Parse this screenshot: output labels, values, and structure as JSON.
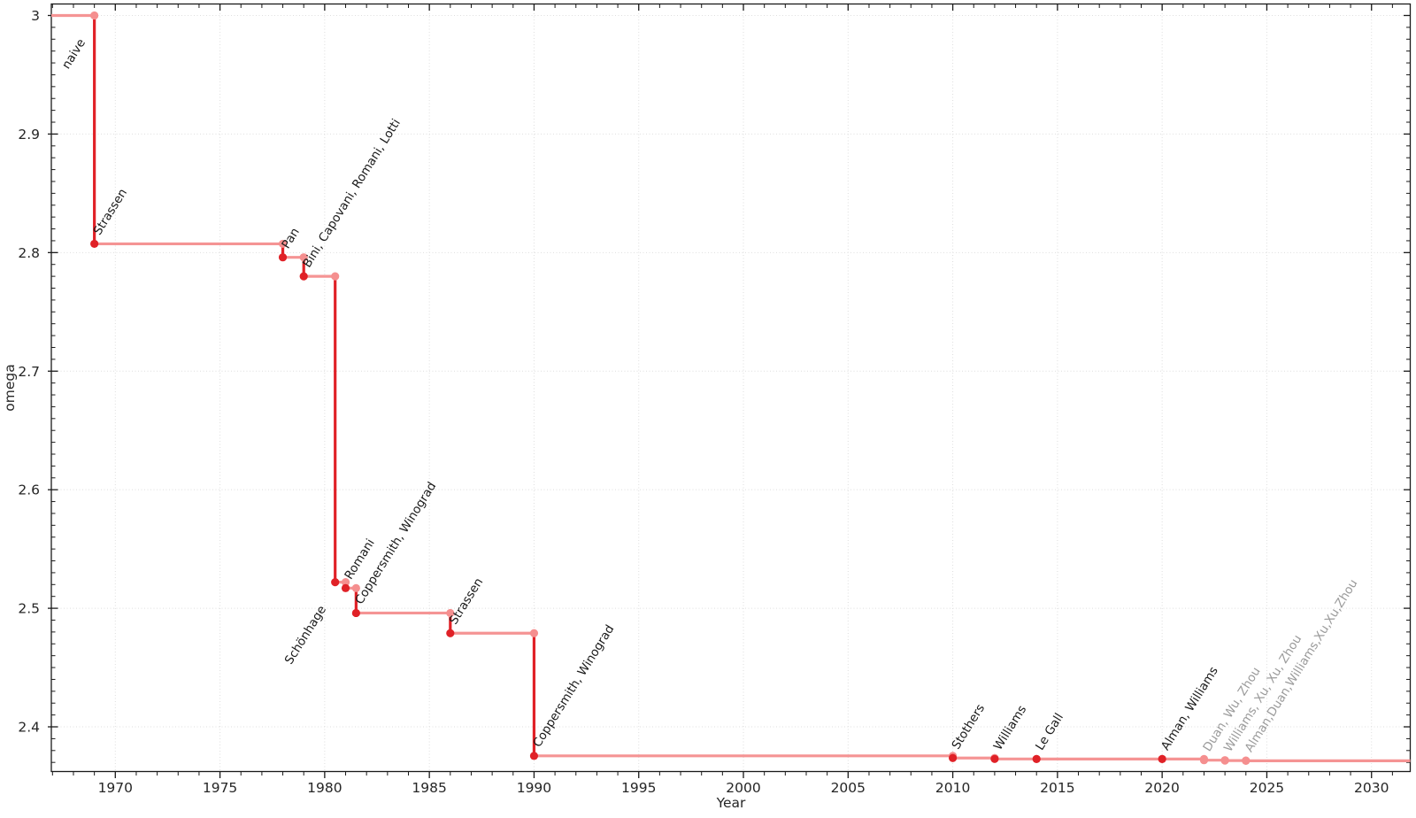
{
  "figure": {
    "background": "#ffffff"
  },
  "chart_data": {
    "type": "line",
    "subtype": "step-post",
    "title": "",
    "xlabel": "Year",
    "ylabel": "omega",
    "xlim": [
      1966.944,
      2031.85
    ],
    "ylim": [
      2.3623,
      3.0097
    ],
    "x_major_ticks": [
      1970,
      1975,
      1980,
      1985,
      1990,
      1995,
      2000,
      2005,
      2010,
      2015,
      2020,
      2025,
      2030
    ],
    "x_tick_labels": [
      "1970",
      "1975",
      "1980",
      "1985",
      "1990",
      "1995",
      "2000",
      "2005",
      "2010",
      "2015",
      "2020",
      "2025",
      "2030"
    ],
    "x_minor_step": 1,
    "y_major_ticks": [
      2.4,
      2.5,
      2.6,
      2.7,
      2.8,
      2.9,
      3.0
    ],
    "y_tick_labels": [
      "2.4",
      "2.5",
      "2.6",
      "2.7",
      "2.8",
      "2.9",
      "3"
    ],
    "y_minor_step": 0.01,
    "grid": "dotted-at-major-ticks",
    "legend": "none",
    "initial": {
      "label": "naive",
      "omega": 3.0
    },
    "events": [
      {
        "year": 1969,
        "omega": 2.8074,
        "label": "Strassen",
        "label_side": "above",
        "recent": false
      },
      {
        "year": 1978,
        "omega": 2.796,
        "label": "Pan",
        "label_side": "above",
        "recent": false
      },
      {
        "year": 1979,
        "omega": 2.78,
        "label": "Bini, Capovani, Romani, Lotti",
        "label_side": "above",
        "recent": false
      },
      {
        "year": 1980.5,
        "omega": 2.522,
        "label": "Schönhage",
        "label_side": "below",
        "recent": false
      },
      {
        "year": 1981,
        "omega": 2.517,
        "label": "Romani",
        "label_side": "above",
        "recent": false
      },
      {
        "year": 1981.5,
        "omega": 2.496,
        "label": "Coppersmith, Winograd",
        "label_side": "above",
        "recent": false
      },
      {
        "year": 1986,
        "omega": 2.479,
        "label": "Strassen",
        "label_side": "above",
        "recent": false
      },
      {
        "year": 1990,
        "omega": 2.3755,
        "label": "Coppersmith, Winograd",
        "label_side": "above",
        "recent": false
      },
      {
        "year": 2010,
        "omega": 2.3737,
        "label": "Stothers",
        "label_side": "above",
        "recent": false
      },
      {
        "year": 2012,
        "omega": 2.3729,
        "label": "Williams",
        "label_side": "above",
        "recent": false
      },
      {
        "year": 2014,
        "omega": 2.3728639,
        "label": "Le Gall",
        "label_side": "above",
        "recent": false
      },
      {
        "year": 2020,
        "omega": 2.3728596,
        "label": "Alman, Williams",
        "label_side": "above",
        "recent": false
      },
      {
        "year": 2022,
        "omega": 2.371866,
        "label": "Duan, Wu, Zhou",
        "label_side": "above",
        "recent": true
      },
      {
        "year": 2023,
        "omega": 2.371552,
        "label": "Williams, Xu, Xu, Zhou",
        "label_side": "above",
        "recent": true
      },
      {
        "year": 2024,
        "omega": 2.371339,
        "label": "Alman,Duan,Williams,Xu,Xu,Zhou",
        "label_side": "above",
        "recent": true
      }
    ],
    "label_rotation_deg": 58,
    "colors": {
      "result_line": "#e02127",
      "carry_line": "#f59494",
      "result_marker": "#e02127",
      "carry_marker": "#f58f8f",
      "label_text": "#1a1a1a",
      "recent_label_text": "#9b9b9b",
      "grid": "#dedede",
      "axis": "#1a1a1a",
      "tick_text": "#262626"
    }
  }
}
